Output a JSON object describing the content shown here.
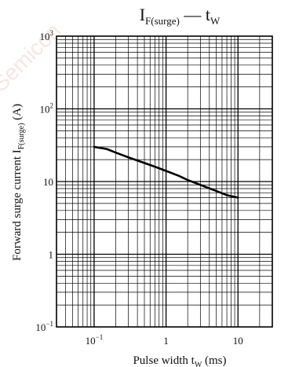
{
  "chart_data": {
    "type": "line",
    "title": {
      "main": "I",
      "sub": "F(surge)",
      "dash": " — ",
      "var": "t",
      "var_sub": "W"
    },
    "xlabel": {
      "text": "Pulse width  t",
      "sub": "W",
      "unit": "  (ms)"
    },
    "ylabel": {
      "text": "Forward surge current  I",
      "sub": "F(surge)",
      "unit": "  (A)"
    },
    "xscale": "log",
    "yscale": "log",
    "xlim": [
      0.03,
      30
    ],
    "ylim": [
      0.1,
      1000
    ],
    "grid": true,
    "x_ticks": [
      {
        "base": "10",
        "exp": "−1"
      },
      {
        "base": "1",
        "exp": ""
      },
      {
        "base": "10",
        "exp": ""
      }
    ],
    "y_ticks": [
      {
        "base": "10",
        "exp": "3"
      },
      {
        "base": "10",
        "exp": "2"
      },
      {
        "base": "10",
        "exp": ""
      },
      {
        "base": "1",
        "exp": ""
      },
      {
        "base": "10",
        "exp": "−1"
      }
    ],
    "series": [
      {
        "x": [
          0.1,
          0.15,
          0.2,
          0.3,
          0.5,
          0.7,
          1,
          1.5,
          2,
          3,
          5,
          7,
          10
        ],
        "y": [
          30,
          28,
          25,
          21.5,
          18,
          16,
          14,
          12,
          10.5,
          9,
          7.4,
          6.5,
          6
        ]
      }
    ],
    "watermark": "Semicon"
  }
}
